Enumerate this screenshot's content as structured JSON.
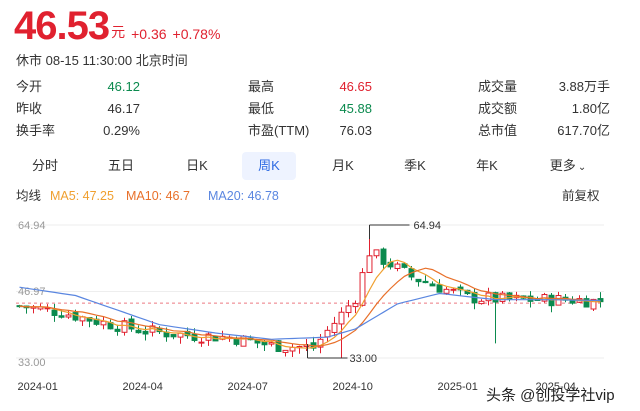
{
  "quote": {
    "price": "46.53",
    "unit": "元",
    "change": "+0.36",
    "change_pct": "+0.78%",
    "status": "休市 08-15 11:30:00 北京时间"
  },
  "stats": [
    [
      {
        "label": "今开",
        "value": "46.12",
        "tone": "down"
      },
      {
        "label": "最高",
        "value": "46.65",
        "tone": "up"
      },
      {
        "label": "成交量",
        "value": "3.88万手",
        "tone": ""
      }
    ],
    [
      {
        "label": "昨收",
        "value": "46.17",
        "tone": ""
      },
      {
        "label": "最低",
        "value": "45.88",
        "tone": "down"
      },
      {
        "label": "成交额",
        "value": "1.80亿",
        "tone": ""
      }
    ],
    [
      {
        "label": "换手率",
        "value": "0.29%",
        "tone": ""
      },
      {
        "label": "市盈(TTM)",
        "value": "76.03",
        "tone": ""
      },
      {
        "label": "总市值",
        "value": "617.70亿",
        "tone": ""
      }
    ]
  ],
  "tabs": [
    {
      "label": "分时"
    },
    {
      "label": "五日"
    },
    {
      "label": "日K"
    },
    {
      "label": "周K",
      "active": true
    },
    {
      "label": "月K"
    },
    {
      "label": "季K"
    },
    {
      "label": "年K"
    },
    {
      "label": "更多"
    }
  ],
  "ma_bar": {
    "title": "均线",
    "ma5": "MA5: 47.25",
    "ma10": "MA10: 46.7",
    "ma20": "MA20: 46.78",
    "adjust": "前复权"
  },
  "colors": {
    "up": "#e0212f",
    "down": "#0b8a4e",
    "ma5": "#f0a030",
    "ma10": "#e8702a",
    "ma20": "#5a86e0",
    "accent": "#2d6ae3"
  },
  "chart_data": {
    "type": "candlestick",
    "y_axis_labels": [
      "64.94",
      "46.97",
      "33.00"
    ],
    "ylim": [
      33.0,
      64.94
    ],
    "x_labels": [
      "2024-01",
      "2024-04",
      "2024-07",
      "2024-10",
      "2025-01",
      "2025-04"
    ],
    "annotations": [
      {
        "label": "64.94",
        "value": 64.94,
        "note": "period high"
      },
      {
        "label": "33.00",
        "value": 33.0,
        "note": "period low"
      }
    ],
    "reference_price": 46.17,
    "weeks": 84,
    "close_anchors": [
      [
        0,
        45.5
      ],
      [
        6,
        44.0
      ],
      [
        12,
        41.5
      ],
      [
        18,
        39.5
      ],
      [
        24,
        38.5
      ],
      [
        30,
        38.0
      ],
      [
        36,
        36.0
      ],
      [
        42,
        35.5
      ],
      [
        48,
        47.5
      ],
      [
        50,
        58.5
      ],
      [
        53,
        55.5
      ],
      [
        56,
        52.5
      ],
      [
        60,
        50.0
      ],
      [
        64,
        47.5
      ],
      [
        70,
        47.0
      ],
      [
        76,
        47.0
      ],
      [
        80,
        47.0
      ],
      [
        83,
        46.53
      ]
    ],
    "ma20_anchors": [
      [
        0,
        50.0
      ],
      [
        8,
        48.0
      ],
      [
        14,
        44.5
      ],
      [
        20,
        41.0
      ],
      [
        28,
        39.0
      ],
      [
        36,
        37.5
      ],
      [
        44,
        38.0
      ],
      [
        48,
        40.0
      ],
      [
        54,
        46.0
      ],
      [
        60,
        48.5
      ],
      [
        68,
        47.0
      ],
      [
        76,
        47.0
      ],
      [
        83,
        46.8
      ]
    ]
  },
  "watermark": "头条 @创投学社vip"
}
